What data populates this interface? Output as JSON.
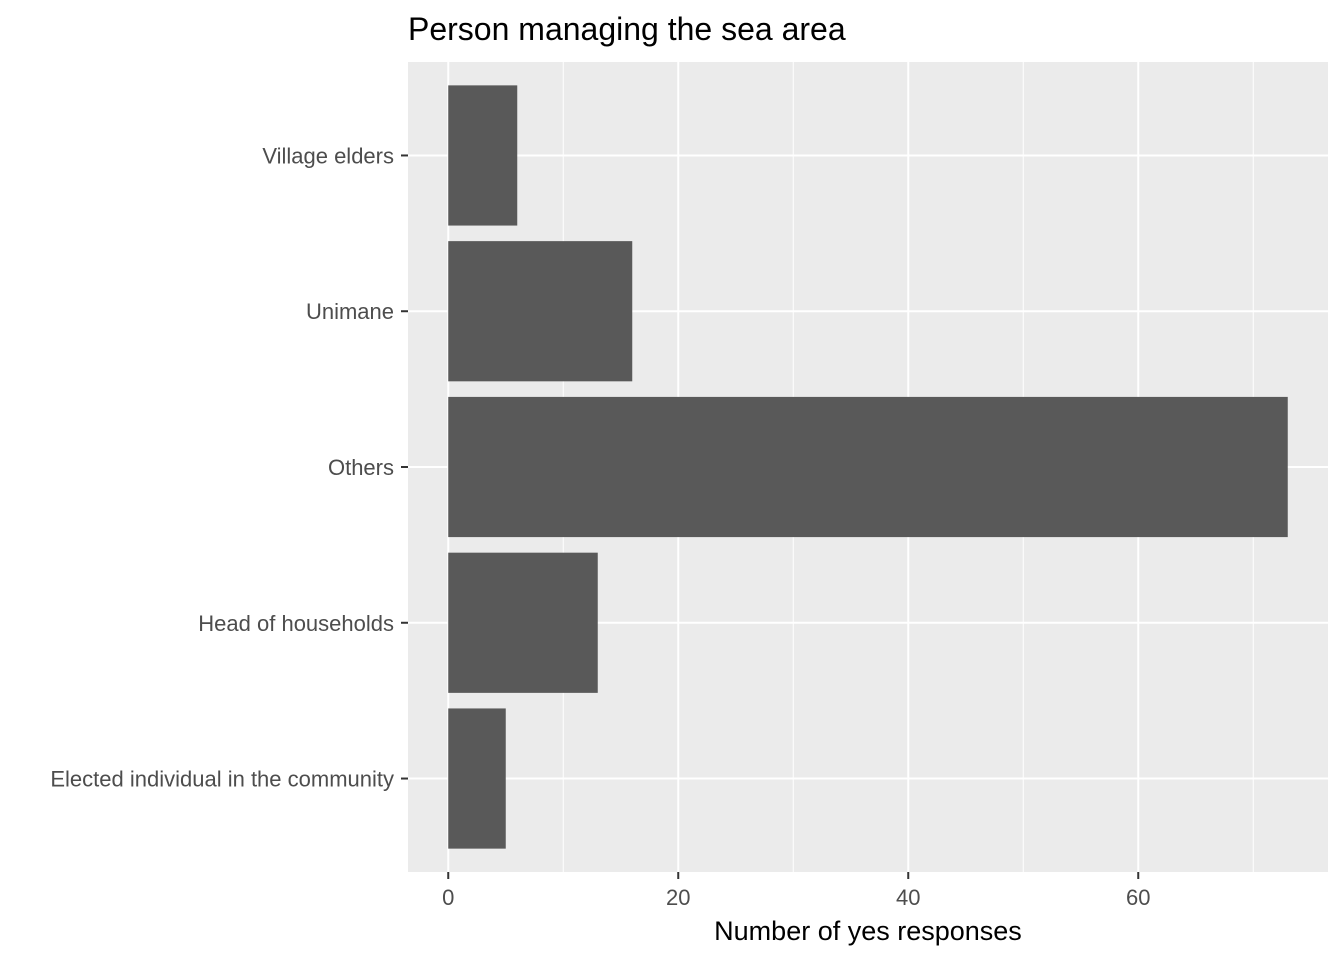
{
  "chart_data": {
    "type": "bar",
    "orientation": "horizontal",
    "title": "Person managing the sea area",
    "xlabel": "Number of yes responses",
    "ylabel": "",
    "categories": [
      "Village elders",
      "Unimane",
      "Others",
      "Head of households",
      "Elected individual in the community"
    ],
    "values": [
      6,
      16,
      73,
      13,
      5
    ],
    "xlim": [
      -3.5,
      76.5
    ],
    "xticks": [
      0,
      20,
      40,
      60
    ],
    "xtick_labels": [
      "0",
      "20",
      "40",
      "60"
    ],
    "grid": true,
    "legend": "none",
    "colors": {
      "bar": "#595959",
      "panel": "#ebebeb",
      "grid": "#ffffff",
      "tick": "#333333"
    }
  }
}
